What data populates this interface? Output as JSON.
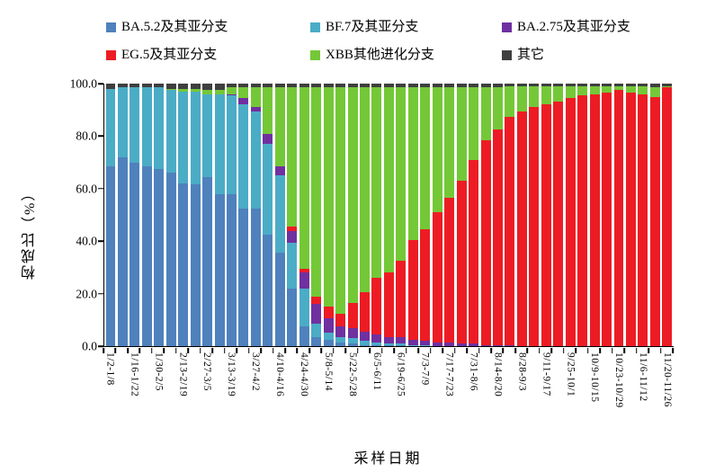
{
  "axes": {
    "y_title": "构成比（%）",
    "x_title": "采样日期",
    "y_ticks": [
      "100.0",
      "80.0",
      "60.0",
      "40.0",
      "20.0",
      "0.0"
    ]
  },
  "legend": [
    {
      "label": "BA.5.2及其亚分支",
      "color": "#4f81bd"
    },
    {
      "label": "BF.7及其亚分支",
      "color": "#4bacc6"
    },
    {
      "label": "BA.2.75及其亚分支",
      "color": "#7030a0"
    },
    {
      "label": "EG.5及其亚分支",
      "color": "#ed1c24"
    },
    {
      "label": "XBB其他进化分支",
      "color": "#74c837"
    },
    {
      "label": "其它",
      "color": "#3f3f3f"
    }
  ],
  "chart_data": {
    "type": "bar",
    "stacked": true,
    "title": "",
    "xlabel": "采样日期",
    "ylabel": "构成比（%）",
    "ylim": [
      0,
      100
    ],
    "y_tick_step": 20,
    "grid": false,
    "legend_position": "top",
    "bar_count": 47,
    "label_every": 2,
    "categories": [
      "1/2-1/8",
      "",
      "1/16-1/22",
      "",
      "1/30-2/5",
      "",
      "2/13-2/19",
      "",
      "2/27-3/5",
      "",
      "3/13-3/19",
      "",
      "3/27-4/2",
      "",
      "4/10-4/16",
      "",
      "4/24-4/30",
      "",
      "5/8-5/14",
      "",
      "5/22-5/28",
      "",
      "6/5-6/11",
      "",
      "6/19-6/25",
      "",
      "7/3-7/9",
      "",
      "7/17-7/23",
      "",
      "7/31-8/6",
      "",
      "8/14-8/20",
      "",
      "8/28-9/3",
      "",
      "9/11-9/17",
      "",
      "9/25-10/1",
      "",
      "10/9-10/15",
      "",
      "10/23-10/29",
      "",
      "11/6-11/12",
      "",
      "11/20-11/26"
    ],
    "series": [
      {
        "name": "BA.5.2及其亚分支",
        "color": "#4f81bd",
        "values": [
          68.5,
          72,
          70,
          68.5,
          67.5,
          66,
          62,
          61.5,
          64.5,
          58,
          58,
          52.5,
          52.5,
          42.5,
          35.5,
          22,
          7.5,
          3.5,
          2.5,
          1.5,
          1,
          0.5,
          0.5,
          0.5,
          0.5,
          0,
          0,
          0,
          0,
          0,
          0,
          0,
          0,
          0,
          0,
          0,
          0,
          0,
          0,
          0,
          0,
          0,
          0,
          0,
          0,
          0,
          0
        ]
      },
      {
        "name": "BF.7及其亚分支",
        "color": "#4bacc6",
        "values": [
          29.5,
          26.5,
          28.5,
          30,
          31,
          31.5,
          35,
          35.5,
          31.5,
          38,
          37.5,
          39.5,
          37,
          34.5,
          29.5,
          17.5,
          14.5,
          5,
          2.5,
          2,
          2,
          1.5,
          1,
          0.5,
          0.5,
          0.5,
          0.5,
          0,
          0,
          0,
          0,
          0,
          0,
          0,
          0,
          0,
          0,
          0,
          0,
          0,
          0,
          0,
          0,
          0,
          0,
          0,
          0
        ]
      },
      {
        "name": "BA.2.75及其亚分支",
        "color": "#7030a0",
        "values": [
          0,
          0,
          0,
          0,
          0,
          0,
          0,
          0,
          0,
          0,
          0.5,
          2.5,
          1.5,
          4,
          3.5,
          4.5,
          6,
          7.5,
          5.5,
          4,
          4,
          3.5,
          3,
          2.5,
          2.5,
          2,
          1.5,
          1.5,
          1.5,
          1,
          1,
          0.5,
          0.5,
          0.5,
          0,
          0,
          0,
          0,
          0,
          0,
          0,
          0,
          0,
          0,
          0,
          0,
          0
        ]
      },
      {
        "name": "EG.5及其亚分支",
        "color": "#ed1c24",
        "values": [
          0,
          0,
          0,
          0,
          0,
          0,
          0,
          0,
          0,
          0,
          0,
          0,
          0,
          0,
          0,
          1.5,
          1.5,
          3,
          4.5,
          5,
          9.5,
          15,
          21.5,
          24.5,
          29,
          38,
          42.5,
          49.5,
          55,
          62,
          70,
          78,
          82,
          87,
          89.5,
          91,
          92,
          93,
          94.5,
          95.5,
          96,
          96.5,
          97.5,
          96.5,
          96,
          95,
          98.5
        ]
      },
      {
        "name": "XBB其他进化分支",
        "color": "#74c837",
        "values": [
          0,
          0,
          0,
          0,
          0,
          0.5,
          1,
          1,
          1.5,
          1.5,
          2.5,
          4,
          7.5,
          17.5,
          30,
          53,
          69,
          79.5,
          83.5,
          86,
          82,
          78,
          72.5,
          70.5,
          66,
          58,
          54,
          47.5,
          42,
          35.5,
          27.5,
          20,
          16,
          11.5,
          9.5,
          8,
          7,
          6,
          4.5,
          3.5,
          3,
          2.5,
          1.5,
          2.5,
          3,
          3.5,
          0.5
        ]
      },
      {
        "name": "其它",
        "color": "#3f3f3f",
        "values": [
          2,
          1.5,
          1.5,
          1.5,
          1.5,
          2,
          2,
          2,
          2.5,
          2.5,
          1.5,
          1.5,
          1.5,
          1.5,
          1.5,
          1.5,
          1.5,
          1.5,
          1.5,
          1.5,
          1.5,
          1.5,
          1.5,
          1.5,
          1.5,
          1.5,
          1.5,
          1.5,
          1.5,
          1.5,
          1.5,
          1.5,
          1.5,
          1,
          1,
          1,
          1,
          1,
          1,
          1,
          1,
          1,
          1,
          1,
          1,
          1.5,
          1
        ]
      }
    ]
  }
}
